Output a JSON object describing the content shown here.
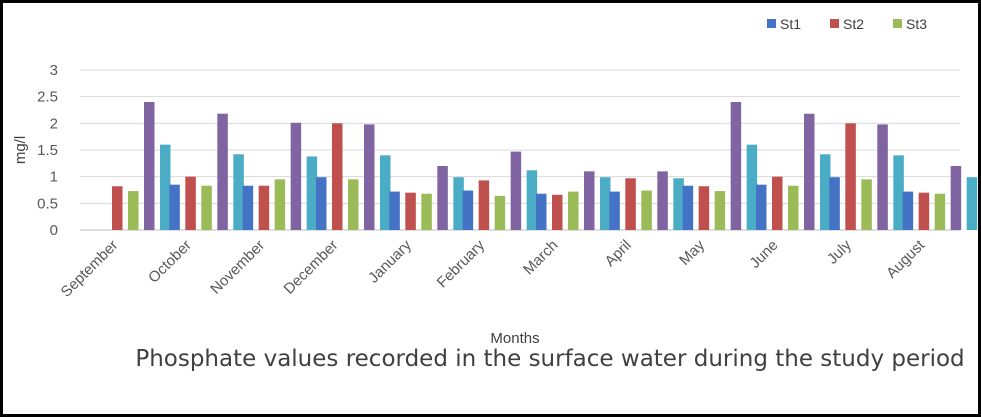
{
  "chart_data": {
    "type": "bar",
    "title": "Phosphate values recorded in the surface water during the study period",
    "xlabel": "Months",
    "ylabel": "mg/l",
    "ylim": [
      0,
      3
    ],
    "yticks": [
      "0",
      "0.5",
      "1",
      "1.5",
      "2",
      "2.5",
      "3"
    ],
    "grid": true,
    "legend_position": "top-right",
    "categories": [
      "September",
      "October",
      "November",
      "December",
      "January",
      "February",
      "March",
      "April",
      "May",
      "June",
      "July",
      "August"
    ],
    "series": [
      {
        "name": "St1",
        "color": "#4472C4",
        "values": [
          0,
          0.85,
          0.83,
          0.99,
          0.72,
          0.74,
          0.68,
          0.72,
          0.83,
          0.85,
          0.99,
          0.72
        ]
      },
      {
        "name": "St2",
        "color": "#C0504D",
        "values": [
          0.82,
          1.0,
          0.83,
          2.0,
          0.7,
          0.93,
          0.66,
          0.97,
          0.82,
          1.0,
          2.0,
          0.7
        ]
      },
      {
        "name": "St3",
        "color": "#9BBB59",
        "values": [
          0.73,
          0.83,
          0.95,
          0.95,
          0.68,
          0.64,
          0.72,
          0.74,
          0.73,
          0.83,
          0.95,
          0.68
        ]
      },
      {
        "color": "#8064A2",
        "values": [
          2.4,
          2.18,
          2.01,
          1.98,
          1.2,
          1.47,
          1.1,
          1.1,
          2.4,
          2.18,
          1.98,
          1.2
        ]
      },
      {
        "color": "#4BACC6",
        "values": [
          1.6,
          1.42,
          1.38,
          1.4,
          0.99,
          1.12,
          0.99,
          0.97,
          1.6,
          1.42,
          1.4,
          0.99
        ]
      }
    ]
  }
}
